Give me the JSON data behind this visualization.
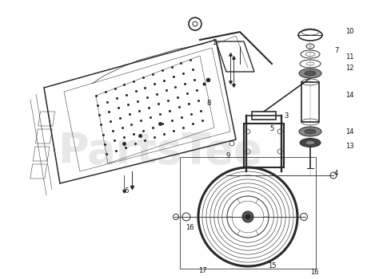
{
  "background_color": "#ffffff",
  "watermark_text": "PartsTee",
  "watermark_color": "#cccccc",
  "watermark_alpha": 0.45,
  "line_color": "#2a2a2a",
  "line_width": 0.7,
  "label_fontsize": 6.0,
  "label_color": "#111111"
}
